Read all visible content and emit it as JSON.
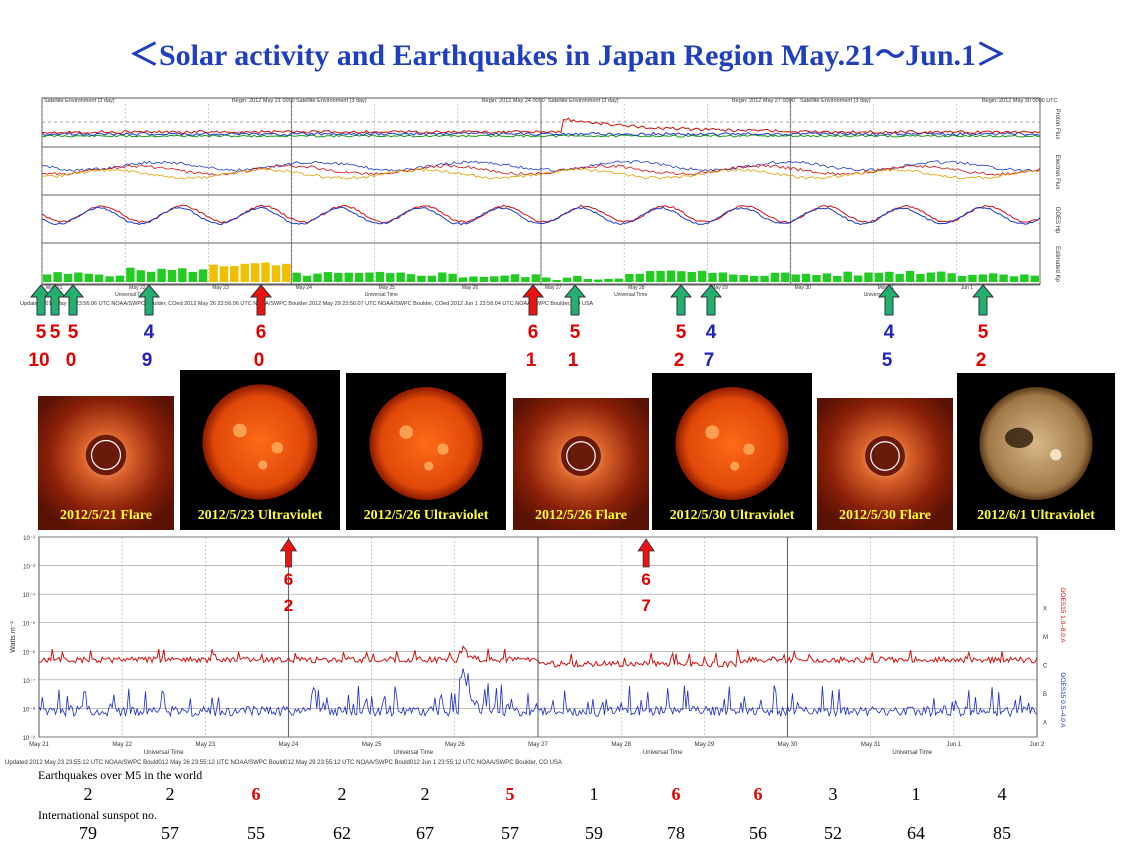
{
  "title": "＜Solar activity and Earthquakes  in Japan Region May.21～Jun.1＞",
  "top_panel": {
    "headers": [
      "Satellite Environment (3 day)",
      "Begin: 2012 May 21 0000",
      "Satellite Environment (3 day)",
      "Begin: 2012 May 24 0000",
      "Satellite Environment (3 day)",
      "Begin: 2012 May 27 0000",
      "Satellite Environment (3 day)",
      "Begin: 2012 May 30 0000 UTC"
    ],
    "right_labels": [
      "Proton Flux",
      "Electron Flux",
      "GOES Hp",
      "Estimated Kp"
    ],
    "date_ticks": [
      "May 21",
      "May 22",
      "May 23",
      "May 24",
      "May 25",
      "May 26",
      "May 27",
      "May 28",
      "May 29",
      "May 30",
      "May 31",
      "Jun 1"
    ],
    "axis_title": "Universal Time",
    "footer": "Updated 2012 May 23 23:56:06 UTC     NOAA/SWPC Boulder, COed 2012 May 26 23:56:06 UTC     NOAA/SWPC Boulder 2012 May 29 23:56:07 UTC     NOAA/SWPC Boulder, COed 2012 Jun 1 23:56:04 UTC     NOAA/SWPC Boulder, CO USA"
  },
  "quake_markers": [
    {
      "mag": "5",
      "day": "10",
      "color": "red",
      "arrow": "green"
    },
    {
      "mag": "5",
      "day": "",
      "color": "red",
      "arrow": "green"
    },
    {
      "mag": "5",
      "day": "0",
      "color": "red",
      "arrow": "green"
    },
    {
      "mag": "4",
      "day": "9",
      "color": "blue",
      "arrow": "green"
    },
    {
      "mag": "6",
      "day": "0",
      "color": "red",
      "arrow": "red"
    },
    {
      "mag": "6",
      "day": "1",
      "color": "red",
      "arrow": "red"
    },
    {
      "mag": "5",
      "day": "1",
      "color": "red",
      "arrow": "green"
    },
    {
      "mag": "5",
      "day": "2",
      "color": "red",
      "arrow": "green"
    },
    {
      "mag": "4",
      "day": "7",
      "color": "blue",
      "arrow": "green"
    },
    {
      "mag": "4",
      "day": "5",
      "color": "blue",
      "arrow": "green"
    },
    {
      "mag": "5",
      "day": "2",
      "color": "red",
      "arrow": "green"
    }
  ],
  "images": [
    {
      "caption": "2012/5/21 Flare",
      "kind": "coronagraph"
    },
    {
      "caption": "2012/5/23 Ultraviolet",
      "kind": "sun-red"
    },
    {
      "caption": "2012/5/26 Ultraviolet",
      "kind": "sun-red"
    },
    {
      "caption": "2012/5/26 Flare",
      "kind": "coronagraph"
    },
    {
      "caption": "2012/5/30 Ultraviolet",
      "kind": "sun-red"
    },
    {
      "caption": "2012/5/30 Flare",
      "kind": "coronagraph"
    },
    {
      "caption": "2012/6/1 Ultraviolet",
      "kind": "sun-gold"
    }
  ],
  "xray_panel": {
    "ylabel": "Watts m⁻²",
    "ytick_labels": [
      "10⁻²",
      "10⁻³",
      "10⁻⁴",
      "10⁻⁵",
      "10⁻⁶",
      "10⁻⁷",
      "10⁻⁸",
      "10⁻⁹"
    ],
    "class_labels": [
      "X",
      "M",
      "C",
      "B",
      "A"
    ],
    "series_labels": [
      "GOES15 1.0–8.0 A",
      "GOES15 0.5–4.0 A"
    ],
    "date_ticks": [
      "May 21",
      "May 22",
      "May 23",
      "May 24",
      "May 25",
      "May 26",
      "May 27",
      "May 28",
      "May 29",
      "May 30",
      "May 31",
      "Jun 1",
      "Jun 2"
    ],
    "axis_title": "Universal Time",
    "footer": "Updated 2012 May 23 23:55:12 UTC     NOAA/SWPC Bould012 May 26 23:55:12 UTC     NOAA/SWPC Bould012 May 29 23:55:12 UTC     NOAA/SWPC Bould012 Jun 1 23:55:12 UTC     NOAA/SWPC Boulder, CO USA",
    "markers": [
      {
        "mag": "6",
        "day": "2"
      },
      {
        "mag": "6",
        "day": "7"
      }
    ]
  },
  "bottom_table": {
    "quake_label": "Earthquakes over M5 in the world",
    "quake_counts": [
      "2",
      "2",
      "6",
      "2",
      "2",
      "5",
      "1",
      "6",
      "6",
      "3",
      "1",
      "4"
    ],
    "quake_colors": [
      "#000000",
      "#000000",
      "#e00000",
      "#000000",
      "#000000",
      "#e00000",
      "#000000",
      "#e00000",
      "#e00000",
      "#000000",
      "#000000",
      "#000000"
    ],
    "sunspot_label": "International sunspot no.",
    "sunspot_numbers": [
      "79",
      "57",
      "55",
      "62",
      "67",
      "57",
      "59",
      "78",
      "56",
      "52",
      "64",
      "85"
    ]
  },
  "chart_data": [
    {
      "type": "bar",
      "title": "Estimated Kp",
      "categories": [
        "May 21",
        "May 22",
        "May 23",
        "May 24",
        "May 25",
        "May 26",
        "May 27",
        "May 28",
        "May 29",
        "May 30",
        "May 31",
        "Jun 1"
      ],
      "values": [
        2,
        3,
        4,
        2,
        2,
        1.5,
        1,
        2.5,
        2,
        2,
        2.5,
        2
      ],
      "ylim": [
        0,
        9
      ]
    },
    {
      "type": "table",
      "title": "Earthquakes over M5 in the world",
      "categories": [
        "May 21",
        "May 22",
        "May 23",
        "May 24",
        "May 25",
        "May 26",
        "May 27",
        "May 28",
        "May 29",
        "May 30",
        "May 31",
        "Jun 1"
      ],
      "series": [
        {
          "name": "Earthquakes over M5 in the world",
          "values": [
            2,
            2,
            6,
            2,
            2,
            5,
            1,
            6,
            6,
            3,
            1,
            4
          ]
        },
        {
          "name": "International sunspot no.",
          "values": [
            79,
            57,
            55,
            62,
            67,
            57,
            59,
            78,
            56,
            52,
            64,
            85
          ]
        }
      ]
    }
  ]
}
